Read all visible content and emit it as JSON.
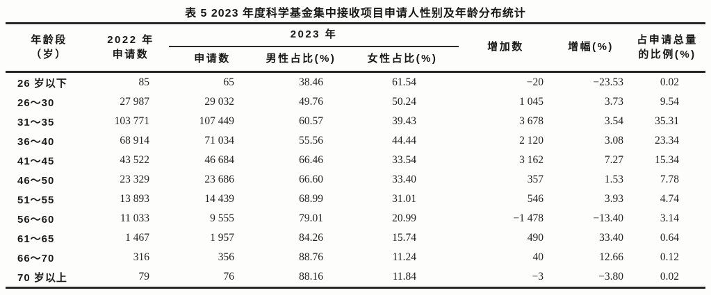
{
  "title": "表 5  2023 年度科学基金集中接收项目申请人性别及年龄分布统计",
  "table": {
    "header": {
      "age_group": [
        "年龄段",
        "（岁）"
      ],
      "applications_2022": [
        "2022 年",
        "申请数"
      ],
      "group_2023": "2023 年",
      "sub_2023": [
        "申请数",
        "男性占比(%)",
        "女性占比(%)"
      ],
      "increase": "增加数",
      "growth_pct": "增幅(%)",
      "share_of_total": [
        "占申请总量",
        "的比例(%)"
      ]
    },
    "rows": [
      [
        "26 岁以下",
        "85",
        "65",
        "38.46",
        "61.54",
        "−20",
        "−23.53",
        "0.02"
      ],
      [
        "26～30",
        "27 987",
        "29 032",
        "49.76",
        "50.24",
        "1 045",
        "3.73",
        "9.54"
      ],
      [
        "31～35",
        "103 771",
        "107 449",
        "60.57",
        "39.43",
        "3 678",
        "3.54",
        "35.31"
      ],
      [
        "36～40",
        "68 914",
        "71 034",
        "55.56",
        "44.44",
        "2 120",
        "3.08",
        "23.34"
      ],
      [
        "41～45",
        "43 522",
        "46 684",
        "66.46",
        "33.54",
        "3 162",
        "7.27",
        "15.34"
      ],
      [
        "46～50",
        "23 329",
        "23 686",
        "66.60",
        "33.40",
        "357",
        "1.53",
        "7.78"
      ],
      [
        "51～55",
        "13 893",
        "14 439",
        "68.99",
        "31.01",
        "546",
        "3.93",
        "4.74"
      ],
      [
        "56～60",
        "11 033",
        "9 555",
        "79.01",
        "20.99",
        "−1 478",
        "−13.40",
        "3.14"
      ],
      [
        "61～65",
        "1 467",
        "1 957",
        "84.26",
        "15.74",
        "490",
        "33.40",
        "0.64"
      ],
      [
        "66～70",
        "316",
        "356",
        "88.76",
        "11.24",
        "40",
        "12.66",
        "0.12"
      ],
      [
        "70 岁以上",
        "79",
        "76",
        "88.16",
        "11.84",
        "−3",
        "−3.80",
        "0.02"
      ]
    ]
  }
}
